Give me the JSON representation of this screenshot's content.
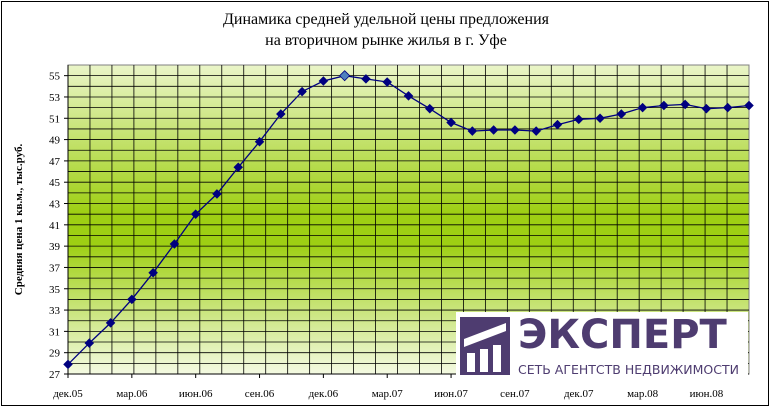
{
  "chart_data": {
    "type": "line",
    "title_line1": "Динамика средней удельной цены предложения",
    "title_line2": "на вторичном рынке жилья в г. Уфе",
    "ylabel": "Средняя цена 1 кв.м., тыс.руб.",
    "xlabel": "",
    "ylim": [
      27,
      56
    ],
    "y_ticks": [
      "27",
      "29",
      "31",
      "33",
      "35",
      "37",
      "39",
      "41",
      "43",
      "45",
      "47",
      "49",
      "51",
      "53",
      "55"
    ],
    "x_ticks": [
      "дек.05",
      "мар.06",
      "июн.06",
      "сен.06",
      "дек.06",
      "мар.07",
      "июн.07",
      "сен.07",
      "дек.07",
      "мар.08",
      "июн.08"
    ],
    "grid": true,
    "legend": "none",
    "series": [
      {
        "values": [
          27.9,
          29.9,
          31.8,
          34.0,
          36.5,
          39.2,
          42.0,
          43.9,
          46.4,
          48.8,
          51.4,
          53.5,
          54.5,
          55.0,
          54.7,
          54.4,
          53.1,
          51.9,
          50.6,
          49.8,
          49.9,
          49.9,
          49.8,
          50.4,
          50.9,
          51.0,
          51.4,
          52.0,
          52.2,
          52.3,
          51.9,
          52.0,
          52.2
        ],
        "highlight_index": 13,
        "color": "#000080",
        "highlight_color": "#4f81bd"
      }
    ]
  },
  "logo": {
    "word": "ЭКСПЕРТ",
    "subtitle": "СЕТЬ АГЕНТСТВ НЕДВИЖИМОСТИ",
    "color": "#4e3c70"
  }
}
